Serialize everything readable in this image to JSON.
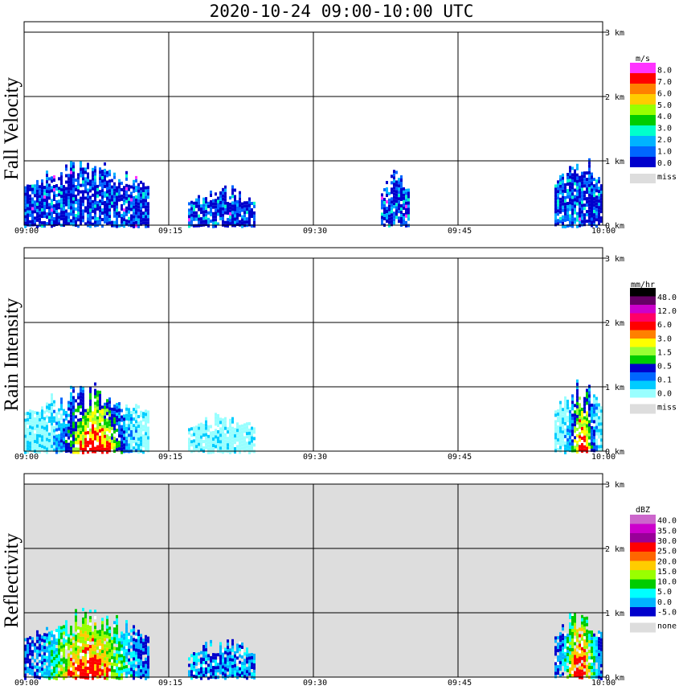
{
  "title": "2020-10-24   09:00-10:00 UTC",
  "x_ticks": [
    "09:00",
    "09:15",
    "09:30",
    "09:45",
    "10:00"
  ],
  "y_ticks": [
    "0 km",
    "1 km",
    "2 km",
    "3 km"
  ],
  "chart_data": [
    {
      "type": "heatmap",
      "title": "Fall Velocity",
      "xlim": [
        "09:00",
        "10:00"
      ],
      "ylim_km": [
        0,
        3.0
      ],
      "background": "#ffffff",
      "colorbar": {
        "unit": "m/s",
        "levels": [
          "8.0",
          "7.0",
          "6.0",
          "5.0",
          "4.0",
          "3.0",
          "2.0",
          "1.0",
          "0.0"
        ],
        "colors": [
          "#ff33ff",
          "#ff0000",
          "#ff8000",
          "#ffcc00",
          "#99ff00",
          "#00cc00",
          "#00ffcc",
          "#00b3ff",
          "#0066ff",
          "#0000cc"
        ],
        "missing_label": "miss",
        "missing_color": "#dddddd"
      },
      "echoes": [
        {
          "t0": "09:00",
          "t1": "09:13",
          "top_km": 1.1,
          "dominant": "blue",
          "note": "fall velocity mostly 0-2 m/s"
        },
        {
          "t0": "09:17",
          "t1": "09:24",
          "top_km": 0.65
        },
        {
          "t0": "09:37",
          "t1": "09:40",
          "top_km": 0.9
        },
        {
          "t0": "09:55",
          "t1": "10:00",
          "top_km": 1.15
        }
      ]
    },
    {
      "type": "heatmap",
      "title": "Rain Intensity",
      "xlim": [
        "09:00",
        "10:00"
      ],
      "ylim_km": [
        0,
        3.0
      ],
      "background": "#ffffff",
      "colorbar": {
        "unit": "mm/hr",
        "levels": [
          "48.0",
          "12.0",
          "6.0",
          "3.0",
          "1.5",
          "0.5",
          "0.1",
          "0.0"
        ],
        "colors": [
          "#000000",
          "#660066",
          "#cc00cc",
          "#ff0066",
          "#ff0000",
          "#ff8000",
          "#ffff00",
          "#99ff33",
          "#00cc00",
          "#0000cc",
          "#0066ff",
          "#00ccff",
          "#99ffff"
        ],
        "missing_label": "miss",
        "missing_color": "#dddddd"
      },
      "echoes": [
        {
          "t0": "09:00",
          "t1": "09:13",
          "top_km": 1.1,
          "max_band": "3.0-6.0"
        },
        {
          "t0": "09:17",
          "t1": "09:24",
          "top_km": 0.65
        },
        {
          "t0": "09:55",
          "t1": "10:00",
          "top_km": 1.15,
          "max_band": "3.0-6.0"
        }
      ]
    },
    {
      "type": "heatmap",
      "title": "Reflectivity",
      "xlim": [
        "09:00",
        "10:00"
      ],
      "ylim_km": [
        0,
        3.0
      ],
      "background": "#dddddd",
      "colorbar": {
        "unit": "dBZ",
        "levels": [
          "40.0",
          "35.0",
          "30.0",
          "25.0",
          "20.0",
          "15.0",
          "10.0",
          "5.0",
          "0.0",
          "-5.0"
        ],
        "colors": [
          "#cc66cc",
          "#cc00cc",
          "#990099",
          "#ff0000",
          "#ff6600",
          "#ffcc00",
          "#99ff00",
          "#00cc00",
          "#00ffff",
          "#00b3ff",
          "#0000cc"
        ],
        "missing_label": "none",
        "missing_color": "#dddddd"
      },
      "echoes": [
        {
          "t0": "09:00",
          "t1": "09:13",
          "top_km": 1.1,
          "max_band": "20.0-25.0"
        },
        {
          "t0": "09:17",
          "t1": "09:24",
          "top_km": 0.65
        },
        {
          "t0": "09:55",
          "t1": "10:00",
          "top_km": 1.15,
          "max_band": "20.0-25.0"
        }
      ]
    }
  ]
}
